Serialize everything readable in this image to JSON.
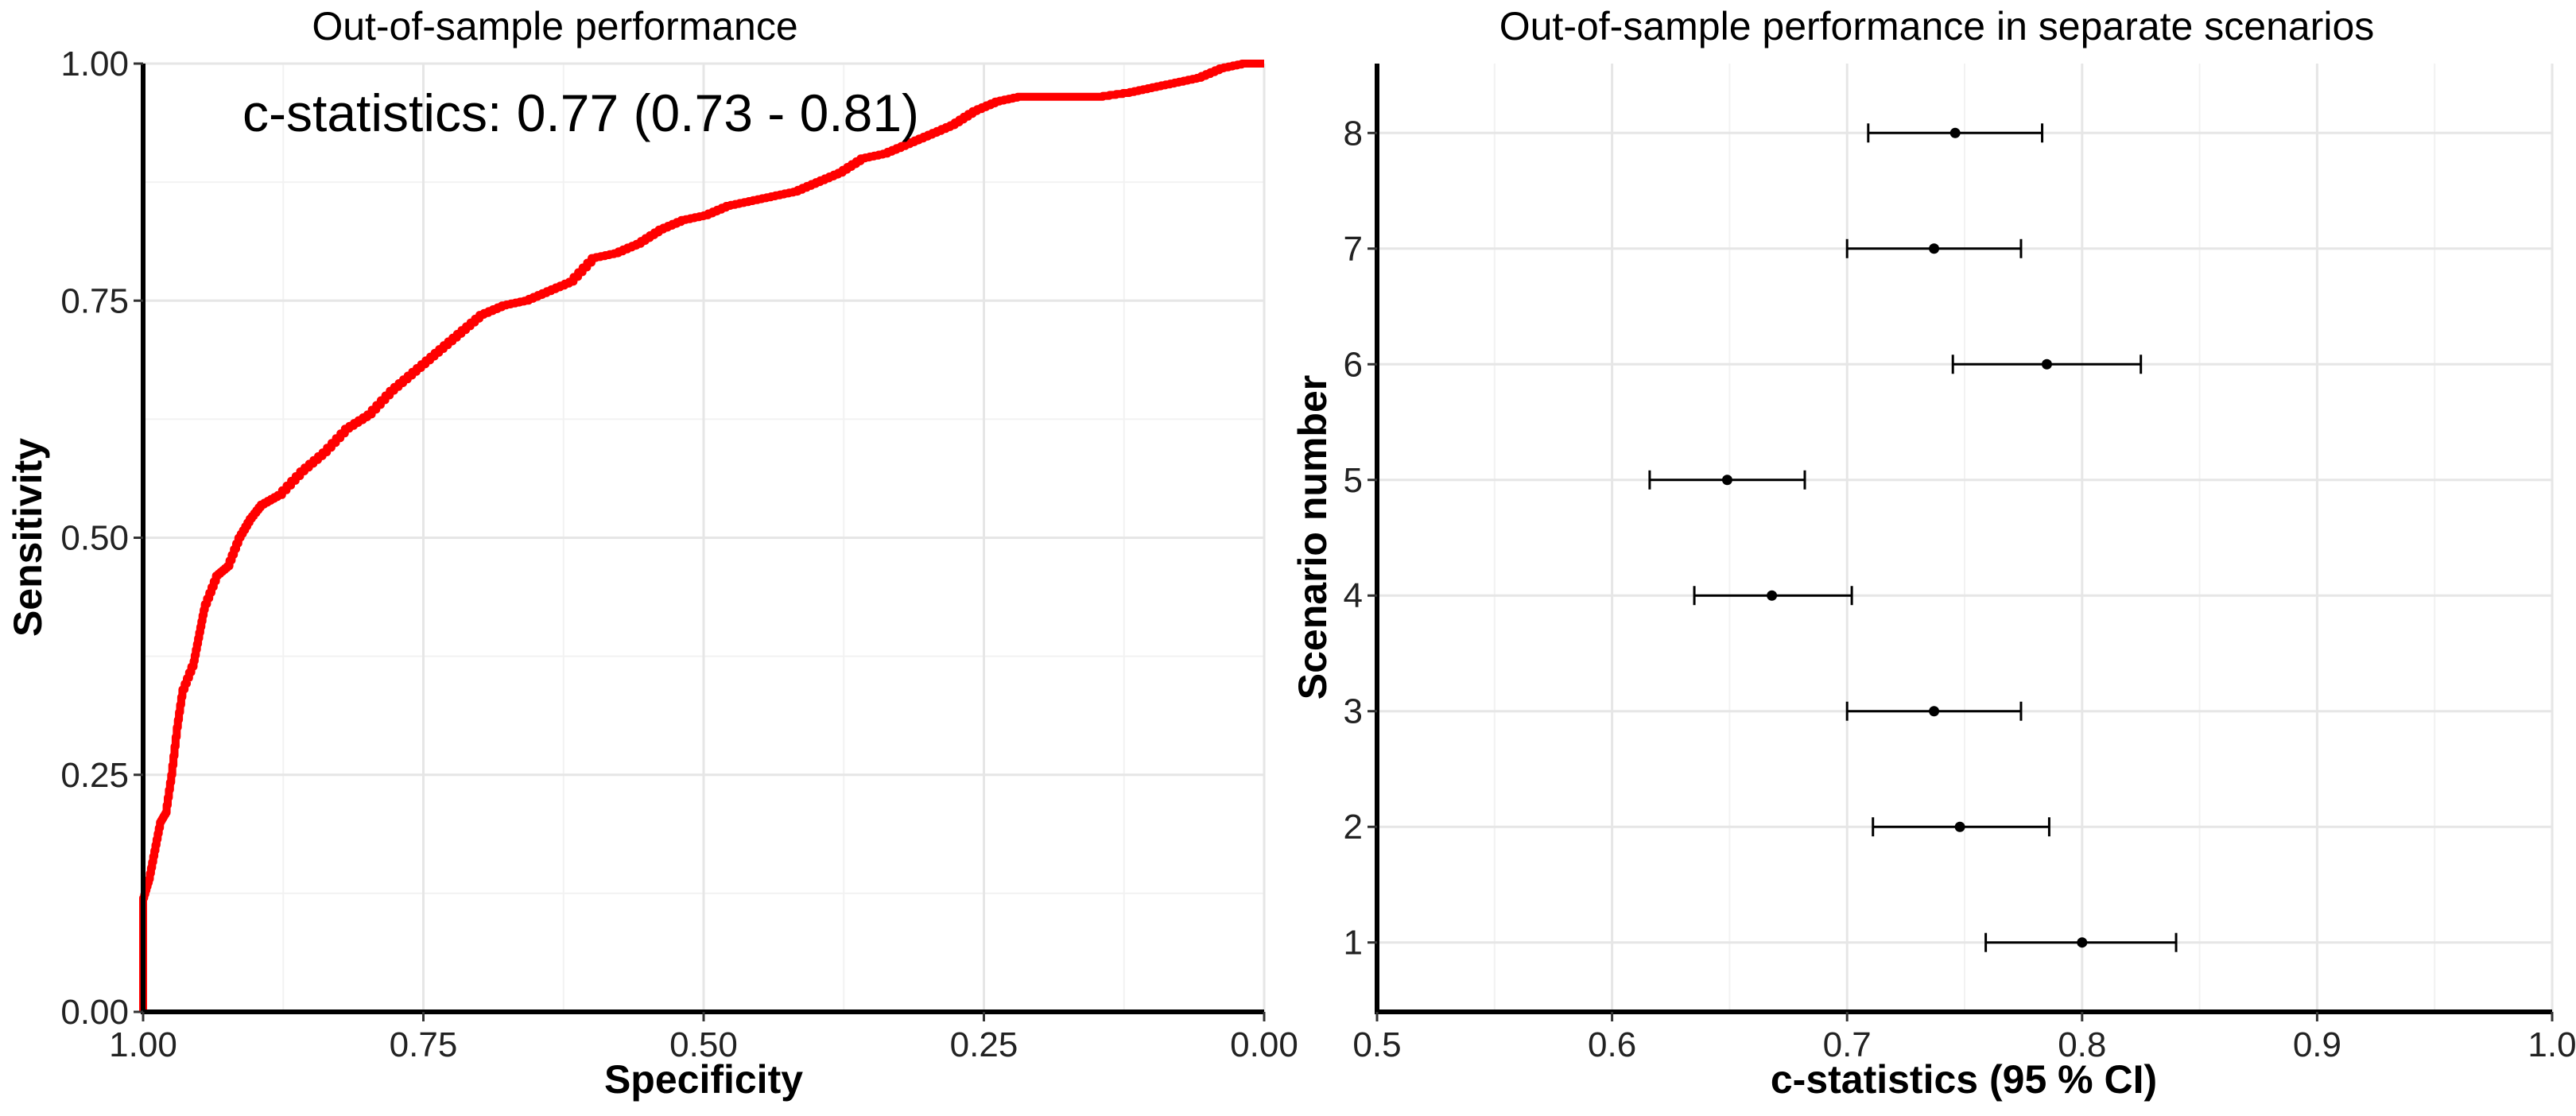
{
  "chart_data": [
    {
      "type": "line",
      "title": "Out-of-sample performance",
      "xlabel": "Specificity",
      "ylabel": "Sensitivity",
      "xlim": [
        1.0,
        0.0
      ],
      "ylim": [
        0.0,
        1.0
      ],
      "x_reversed": true,
      "x_ticks": [
        "1.00",
        "0.75",
        "0.50",
        "0.25",
        "0.00"
      ],
      "y_ticks": [
        "0.00",
        "0.25",
        "0.50",
        "0.75",
        "1.00"
      ],
      "annotation": "c-statistics: 0.77 (0.73 - 0.81)",
      "grid": true,
      "line_color": "#ff0000",
      "series": [
        {
          "x": [
            1.0,
            1.0,
            0.995,
            0.99,
            0.985,
            0.98,
            0.975,
            0.97,
            0.965,
            0.955,
            0.95,
            0.945,
            0.935,
            0.925,
            0.915,
            0.905,
            0.895,
            0.88,
            0.86,
            0.84,
            0.82,
            0.8,
            0.78,
            0.76,
            0.74,
            0.72,
            0.7,
            0.68,
            0.66,
            0.64,
            0.62,
            0.6,
            0.58,
            0.56,
            0.54,
            0.52,
            0.5,
            0.48,
            0.46,
            0.44,
            0.42,
            0.4,
            0.38,
            0.36,
            0.34,
            0.32,
            0.3,
            0.28,
            0.26,
            0.24,
            0.22,
            0.2,
            0.18,
            0.15,
            0.12,
            0.1,
            0.08,
            0.06,
            0.04,
            0.02,
            0.0
          ],
          "y": [
            0.0,
            0.12,
            0.14,
            0.17,
            0.2,
            0.21,
            0.25,
            0.3,
            0.34,
            0.37,
            0.4,
            0.43,
            0.46,
            0.47,
            0.5,
            0.52,
            0.535,
            0.545,
            0.57,
            0.59,
            0.615,
            0.63,
            0.655,
            0.675,
            0.695,
            0.715,
            0.735,
            0.745,
            0.75,
            0.76,
            0.77,
            0.795,
            0.8,
            0.81,
            0.825,
            0.835,
            0.84,
            0.85,
            0.855,
            0.86,
            0.865,
            0.875,
            0.885,
            0.9,
            0.905,
            0.915,
            0.925,
            0.935,
            0.95,
            0.96,
            0.965,
            0.965,
            0.965,
            0.965,
            0.97,
            0.975,
            0.98,
            0.985,
            0.995,
            1.0,
            1.0
          ]
        }
      ]
    },
    {
      "type": "scatter",
      "title": "Out-of-sample performance  in separate scenarios",
      "xlabel": "c-statistics (95 % CI)",
      "ylabel": "Scenario number",
      "xlim": [
        0.5,
        1.0
      ],
      "ylim": [
        0.4,
        8.6
      ],
      "x_ticks": [
        "0.5",
        "0.6",
        "0.7",
        "0.8",
        "0.9",
        "1.0"
      ],
      "grid": true,
      "categories": [
        "1",
        "2",
        "3",
        "4",
        "5",
        "6",
        "7",
        "8"
      ],
      "series": [
        {
          "estimate": [
            0.8,
            0.748,
            0.737,
            0.668,
            0.649,
            0.785,
            0.737,
            0.746
          ],
          "lower": [
            0.759,
            0.711,
            0.7,
            0.635,
            0.616,
            0.745,
            0.7,
            0.709
          ],
          "upper": [
            0.84,
            0.786,
            0.774,
            0.702,
            0.682,
            0.825,
            0.774,
            0.783
          ]
        }
      ]
    }
  ]
}
